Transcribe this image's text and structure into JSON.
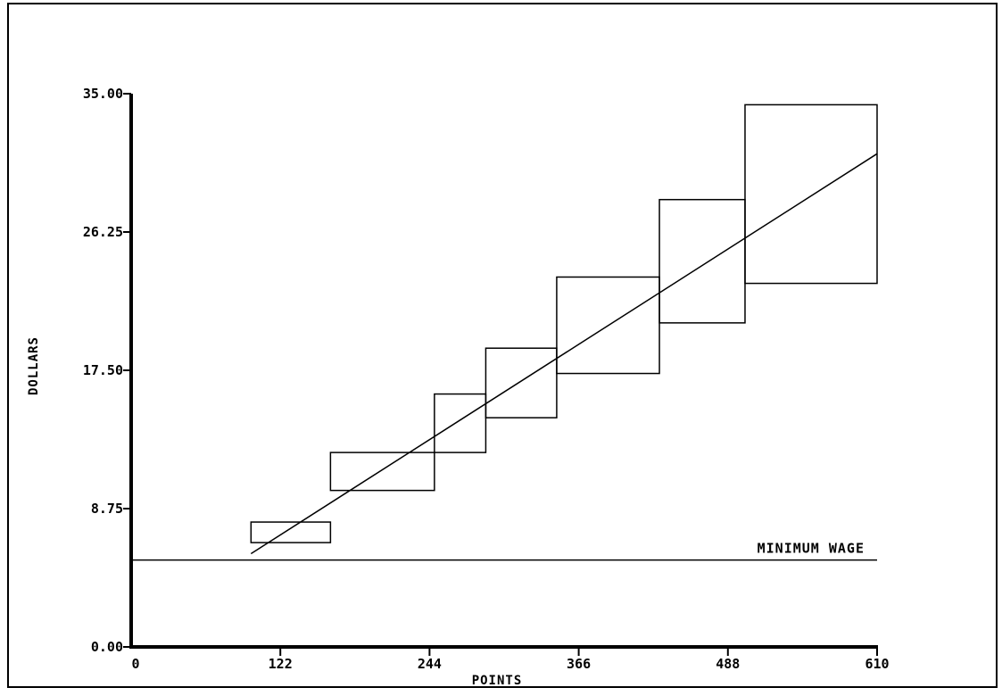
{
  "chart_data": {
    "type": "box-step",
    "title": "",
    "xlabel": "POINTS",
    "ylabel": "DOLLARS",
    "xlim": [
      0,
      610
    ],
    "ylim": [
      0,
      35
    ],
    "x_ticks": [
      "0",
      "122",
      "244",
      "366",
      "488",
      "610"
    ],
    "y_ticks": [
      "0.00",
      "8.75",
      "17.50",
      "26.25",
      "35.00"
    ],
    "grid": false,
    "boxes": [
      {
        "x_start": 98,
        "x_end": 163,
        "y_min": 6.6,
        "y_max": 7.9
      },
      {
        "x_start": 163,
        "x_end": 248,
        "y_min": 9.9,
        "y_max": 12.3
      },
      {
        "x_start": 248,
        "x_end": 290,
        "y_min": 12.3,
        "y_max": 16.0
      },
      {
        "x_start": 290,
        "x_end": 348,
        "y_min": 14.5,
        "y_max": 18.9
      },
      {
        "x_start": 348,
        "x_end": 432,
        "y_min": 17.3,
        "y_max": 23.4
      },
      {
        "x_start": 432,
        "x_end": 502,
        "y_min": 20.5,
        "y_max": 28.3
      },
      {
        "x_start": 502,
        "x_end": 610,
        "y_min": 23.0,
        "y_max": 34.3
      }
    ],
    "trend_line": {
      "x_start": 98,
      "y_start": 5.9,
      "x_end": 610,
      "y_end": 31.2
    },
    "minimum_wage": {
      "label": "MINIMUM WAGE",
      "value": 5.5,
      "x_start": 0,
      "x_end": 610
    }
  }
}
